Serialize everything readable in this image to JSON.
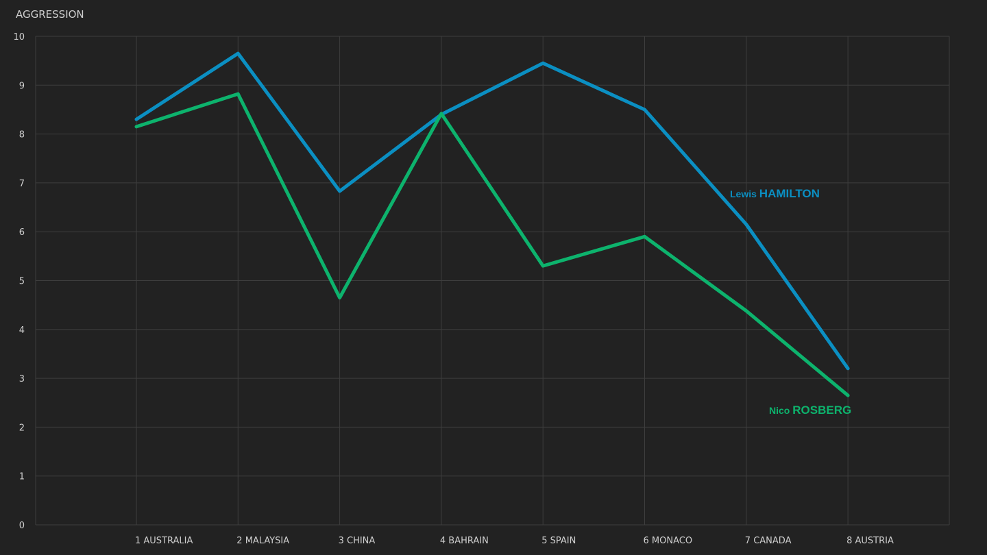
{
  "colors": {
    "background": "#222222",
    "grid": "#3e3e3e",
    "text": "#cfcfcf",
    "hamilton": "#0b8fc2",
    "rosberg": "#0db36d"
  },
  "chart_data": {
    "type": "line",
    "title": "",
    "ylabel": "AGGRESSION",
    "xlabel": "",
    "ylim": [
      0,
      10
    ],
    "yticks": [
      "0",
      "1",
      "2",
      "3",
      "4",
      "5",
      "6",
      "7",
      "8",
      "9",
      "10"
    ],
    "grid": true,
    "categories": [
      "1 AUSTRALIA",
      "2 MALAYSIA",
      "3 CHINA",
      "4 BAHRAIN",
      "5 SPAIN",
      "6 MONACO",
      "7 CANADA",
      "8 AUSTRIA"
    ],
    "series": [
      {
        "name_first": "Lewis",
        "name_last": "HAMILTON",
        "color": "#0b8fc2",
        "values": [
          8.3,
          9.65,
          6.83,
          8.4,
          9.45,
          8.5,
          6.15,
          3.2
        ]
      },
      {
        "name_first": "Nico",
        "name_last": "ROSBERG",
        "color": "#0db36d",
        "values": [
          8.15,
          8.82,
          4.65,
          8.42,
          5.3,
          5.9,
          4.38,
          2.65
        ]
      }
    ]
  }
}
